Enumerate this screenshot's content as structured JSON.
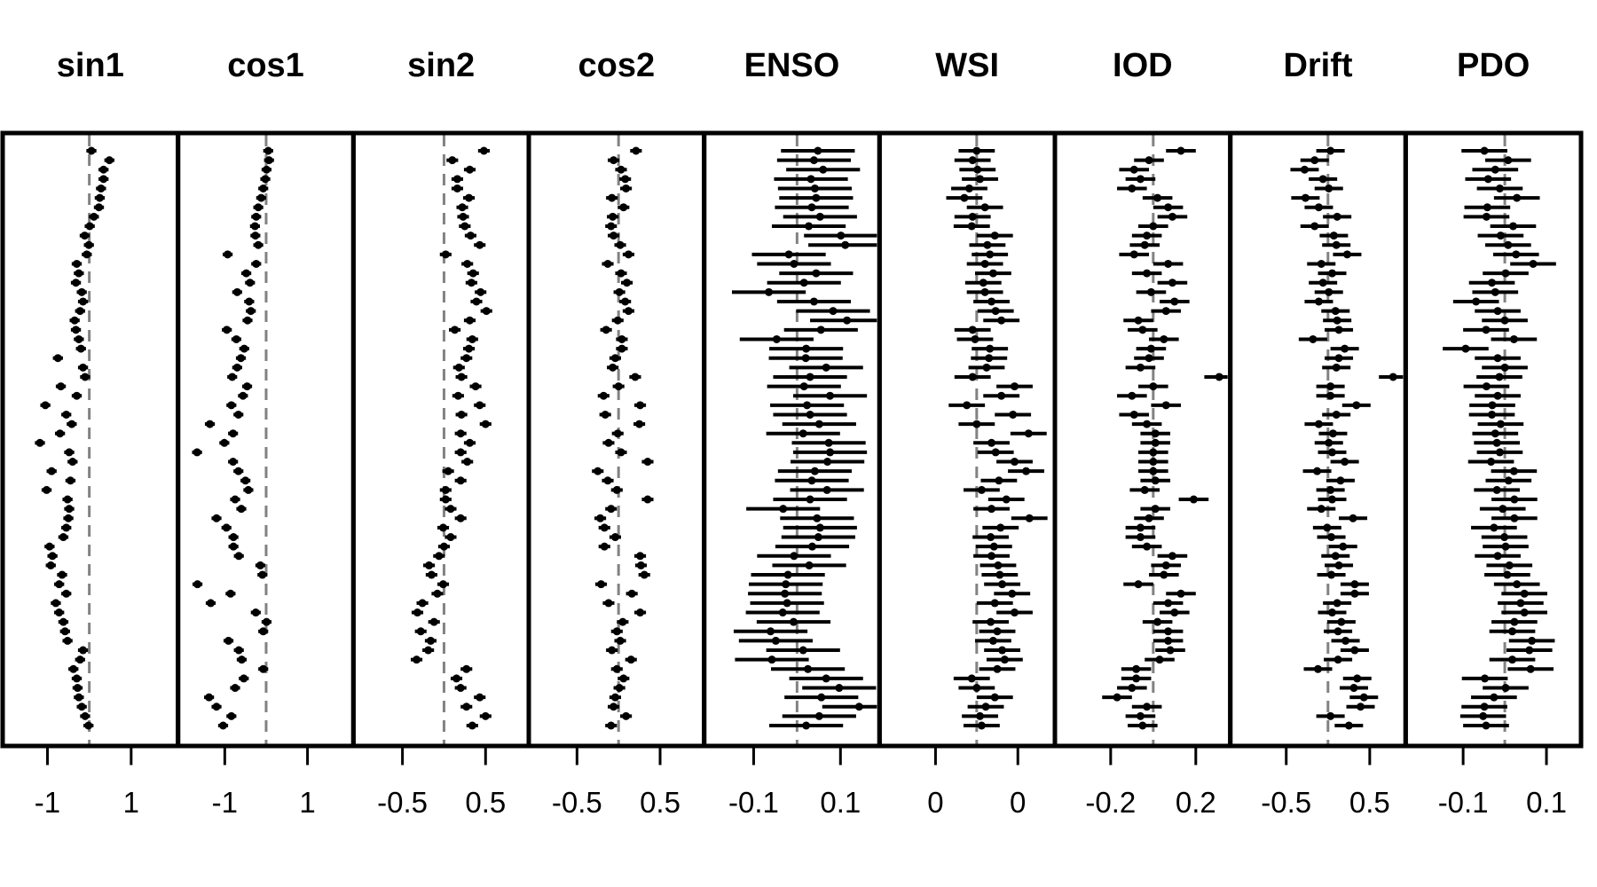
{
  "figure": {
    "background": "#ffffff",
    "point_color": "#000000",
    "ci_color": "#000000",
    "border_color": "#000000",
    "zero_line_color": "#828282",
    "title_fontsize": 38,
    "tick_fontsize": 33
  },
  "chart_data": {
    "type": "scatter",
    "subtype": "forest-plot-small-multiples",
    "description": "Nine side-by-side panels of per-row coefficient estimates (dots) with horizontal confidence-interval lines and a gray dashed vertical reference line at zero. Rows are shared across panels, top to bottom.",
    "n_rows": 62,
    "grid": false,
    "legend": false,
    "panels": [
      {
        "title": "sin1",
        "xmin": -2.07,
        "xmax": 2.12,
        "zero": 0,
        "ci_half": 0.12,
        "ticks": [
          {
            "value": -1,
            "label": "-1"
          },
          {
            "value": 1,
            "label": "1"
          }
        ],
        "estimates": [
          0.05,
          0.48,
          0.34,
          0.34,
          0.28,
          0.25,
          0.23,
          0.11,
          0.01,
          -0.11,
          -0.01,
          -0.06,
          -0.3,
          -0.25,
          -0.32,
          -0.18,
          -0.15,
          -0.22,
          -0.35,
          -0.32,
          -0.25,
          -0.2,
          -0.75,
          -0.15,
          -0.1,
          -0.68,
          -0.3,
          -1.05,
          -0.55,
          -0.42,
          -0.7,
          -1.18,
          -0.48,
          -0.4,
          -0.9,
          -0.45,
          -1.02,
          -0.52,
          -0.48,
          -0.5,
          -0.55,
          -0.62,
          -0.95,
          -0.88,
          -0.92,
          -0.65,
          -0.72,
          -0.55,
          -0.8,
          -0.72,
          -0.62,
          -0.58,
          -0.52,
          -0.15,
          -0.22,
          -0.38,
          -0.3,
          -0.28,
          -0.25,
          -0.18,
          -0.1,
          -0.02
        ]
      },
      {
        "title": "cos1",
        "xmin": -2.13,
        "xmax": 2.11,
        "zero": 0,
        "ci_half": 0.12,
        "ticks": [
          {
            "value": -1,
            "label": "-1"
          },
          {
            "value": 1,
            "label": "1"
          }
        ],
        "estimates": [
          0.05,
          0.07,
          0.01,
          -0.02,
          -0.07,
          -0.12,
          -0.19,
          -0.24,
          -0.27,
          -0.26,
          -0.19,
          -0.93,
          -0.24,
          -0.48,
          -0.39,
          -0.7,
          -0.41,
          -0.37,
          -0.45,
          -0.95,
          -0.72,
          -0.53,
          -0.61,
          -0.7,
          -0.82,
          -0.46,
          -0.56,
          -0.84,
          -0.67,
          -1.36,
          -0.8,
          -1.01,
          -1.67,
          -0.8,
          -0.67,
          -0.5,
          -0.43,
          -0.75,
          -0.6,
          -1.2,
          -0.96,
          -0.79,
          -0.79,
          -0.66,
          -0.14,
          -0.09,
          -1.66,
          -0.86,
          -1.34,
          -0.25,
          0.01,
          -0.07,
          -0.91,
          -0.66,
          -0.59,
          -0.07,
          -0.54,
          -0.75,
          -1.38,
          -1.2,
          -0.84,
          -1.04
        ]
      },
      {
        "title": "sin2",
        "xmin": -1.09,
        "xmax": 1.02,
        "zero": 0,
        "ci_half": 0.07,
        "ticks": [
          {
            "value": -0.5,
            "label": "-0.5"
          },
          {
            "value": 0.5,
            "label": "0.5"
          }
        ],
        "estimates": [
          0.48,
          0.1,
          0.31,
          0.16,
          0.16,
          0.3,
          0.22,
          0.23,
          0.25,
          0.32,
          0.43,
          0.02,
          0.28,
          0.35,
          0.33,
          0.44,
          0.39,
          0.51,
          0.31,
          0.13,
          0.34,
          0.3,
          0.27,
          0.18,
          0.21,
          0.38,
          0.17,
          0.43,
          0.21,
          0.5,
          0.2,
          0.31,
          0.2,
          0.28,
          0.05,
          0.2,
          0.02,
          0.02,
          0.08,
          0.2,
          -0.01,
          0.08,
          0.0,
          -0.06,
          -0.18,
          -0.15,
          -0.01,
          -0.08,
          -0.26,
          -0.32,
          -0.12,
          -0.28,
          -0.16,
          -0.19,
          -0.33,
          0.27,
          0.15,
          0.2,
          0.43,
          0.27,
          0.5,
          0.34
        ]
      },
      {
        "title": "cos2",
        "xmin": -1.08,
        "xmax": 1.03,
        "zero": 0,
        "ci_half": 0.07,
        "ticks": [
          {
            "value": -0.5,
            "label": "-0.5"
          },
          {
            "value": 0.5,
            "label": "0.5"
          }
        ],
        "estimates": [
          0.21,
          -0.06,
          0.03,
          0.08,
          0.09,
          -0.08,
          0.06,
          -0.07,
          -0.09,
          -0.06,
          0.02,
          0.12,
          -0.13,
          0.03,
          0.1,
          0.01,
          0.08,
          0.12,
          -0.01,
          -0.15,
          0.04,
          0.04,
          -0.04,
          -0.07,
          0.2,
          0.0,
          -0.18,
          0.26,
          -0.16,
          0.25,
          -0.01,
          -0.12,
          0.03,
          0.35,
          -0.25,
          -0.13,
          -0.02,
          0.35,
          -0.09,
          -0.22,
          -0.17,
          -0.04,
          -0.17,
          0.26,
          0.27,
          0.31,
          -0.21,
          0.16,
          -0.12,
          0.26,
          0.05,
          -0.02,
          0.02,
          -0.08,
          0.15,
          -0.02,
          0.06,
          0.01,
          -0.04,
          -0.06,
          0.09,
          -0.09
        ]
      },
      {
        "title": "ENSO",
        "xmin": -0.214,
        "xmax": 0.19,
        "zero": 0,
        "ci_half": 0.085,
        "ticks": [
          {
            "value": -0.1,
            "label": "-0.1"
          },
          {
            "value": 0.1,
            "label": "0.1"
          }
        ],
        "estimates": [
          0.048,
          0.039,
          0.06,
          0.032,
          0.041,
          0.044,
          0.034,
          0.053,
          0.027,
          0.101,
          0.111,
          -0.019,
          -0.007,
          0.044,
          0.016,
          -0.065,
          0.039,
          0.083,
          0.115,
          0.055,
          -0.047,
          0.021,
          0.02,
          0.067,
          0.03,
          0.016,
          0.076,
          0.023,
          0.03,
          0.051,
          0.014,
          0.073,
          0.076,
          0.07,
          0.041,
          0.034,
          0.069,
          0.03,
          -0.032,
          0.046,
          0.053,
          0.049,
          0.035,
          -0.007,
          0.028,
          -0.021,
          -0.026,
          -0.028,
          -0.023,
          -0.033,
          -0.008,
          -0.061,
          -0.049,
          0.014,
          -0.058,
          0.025,
          0.067,
          0.097,
          0.056,
          0.143,
          0.051,
          0.021
        ]
      },
      {
        "title": "WSI",
        "xmin": -0.118,
        "xmax": 0.095,
        "zero": 0,
        "ci_half": 0.022,
        "ticks": [
          {
            "value": -0.05,
            "label": "0"
          },
          {
            "value": 0.05,
            "label": "0"
          }
        ],
        "estimates": [
          0.0,
          -0.005,
          0.001,
          0.004,
          -0.009,
          -0.015,
          0.01,
          -0.005,
          -0.006,
          0.022,
          0.013,
          0.016,
          0.01,
          0.02,
          0.008,
          0.01,
          0.018,
          0.023,
          0.03,
          -0.005,
          -0.002,
          0.016,
          0.015,
          0.012,
          -0.005,
          0.046,
          0.03,
          -0.012,
          0.044,
          0.0,
          0.063,
          0.018,
          0.023,
          0.046,
          0.06,
          0.027,
          0.006,
          0.036,
          0.018,
          0.064,
          0.029,
          0.017,
          0.021,
          0.018,
          0.026,
          0.028,
          0.031,
          0.043,
          0.022,
          0.046,
          0.017,
          0.025,
          0.02,
          0.031,
          0.034,
          0.025,
          -0.006,
          0.0,
          0.022,
          0.011,
          0.004,
          0.006
        ]
      },
      {
        "title": "IOD",
        "xmin": -0.462,
        "xmax": 0.362,
        "zero": 0,
        "ci_half": 0.07,
        "ticks": [
          {
            "value": -0.2,
            "label": "-0.2"
          },
          {
            "value": 0.2,
            "label": "0.2"
          }
        ],
        "estimates": [
          0.13,
          -0.02,
          -0.09,
          -0.06,
          -0.1,
          0.02,
          0.07,
          0.09,
          0.0,
          -0.03,
          -0.04,
          -0.09,
          0.07,
          -0.03,
          0.09,
          -0.01,
          0.1,
          0.06,
          -0.07,
          -0.05,
          0.05,
          -0.01,
          -0.02,
          -0.06,
          0.31,
          0.0,
          -0.1,
          0.06,
          -0.09,
          -0.03,
          0.01,
          0.01,
          0.0,
          0.0,
          0.0,
          0.01,
          -0.04,
          0.19,
          0.01,
          -0.02,
          -0.06,
          -0.06,
          -0.03,
          0.09,
          0.06,
          0.05,
          -0.07,
          0.13,
          0.07,
          0.1,
          0.02,
          0.07,
          0.07,
          0.08,
          0.03,
          -0.08,
          -0.08,
          -0.1,
          -0.17,
          -0.03,
          -0.06,
          -0.05
        ]
      },
      {
        "title": "Drift",
        "xmin": -1.17,
        "xmax": 0.93,
        "zero": 0,
        "ci_half": 0.17,
        "ticks": [
          {
            "value": -0.5,
            "label": "-0.5"
          },
          {
            "value": 0.5,
            "label": "0.5"
          }
        ],
        "estimates": [
          0.03,
          -0.16,
          -0.28,
          -0.06,
          0.01,
          -0.27,
          -0.11,
          0.11,
          -0.16,
          0.07,
          0.1,
          0.23,
          -0.08,
          0.05,
          -0.06,
          0.01,
          -0.11,
          0.09,
          0.11,
          0.13,
          -0.18,
          0.2,
          0.13,
          0.1,
          0.78,
          0.03,
          0.03,
          0.34,
          0.1,
          -0.11,
          0.06,
          0.01,
          0.05,
          0.2,
          -0.13,
          0.15,
          0.03,
          0.05,
          -0.08,
          0.3,
          -0.01,
          0.04,
          0.18,
          0.09,
          0.13,
          0.04,
          0.32,
          0.32,
          0.11,
          0.05,
          0.16,
          0.12,
          0.21,
          0.32,
          0.12,
          -0.12,
          0.35,
          0.31,
          0.43,
          0.39,
          0.03,
          0.25
        ]
      },
      {
        "title": "PDO",
        "xmin": -0.238,
        "xmax": 0.183,
        "zero": 0,
        "ci_half": 0.055,
        "ticks": [
          {
            "value": -0.1,
            "label": "-0.1"
          },
          {
            "value": 0.1,
            "label": "0.1"
          }
        ],
        "estimates": [
          -0.049,
          0.008,
          -0.023,
          -0.04,
          -0.012,
          0.029,
          -0.042,
          -0.044,
          0.02,
          -0.01,
          0.008,
          0.027,
          0.068,
          0.002,
          -0.031,
          -0.023,
          -0.069,
          -0.017,
          0.0,
          -0.045,
          0.022,
          -0.094,
          -0.017,
          0.0,
          -0.013,
          -0.044,
          -0.017,
          -0.03,
          -0.031,
          -0.01,
          -0.023,
          -0.019,
          -0.012,
          -0.033,
          0.022,
          0.009,
          -0.019,
          0.023,
          -0.005,
          0.023,
          -0.026,
          -0.001,
          0.002,
          -0.017,
          0.011,
          0.006,
          0.029,
          0.047,
          0.038,
          0.047,
          0.023,
          0.018,
          0.065,
          0.059,
          0.018,
          0.062,
          -0.048,
          0.002,
          -0.026,
          -0.049,
          -0.052,
          -0.045
        ]
      }
    ]
  }
}
